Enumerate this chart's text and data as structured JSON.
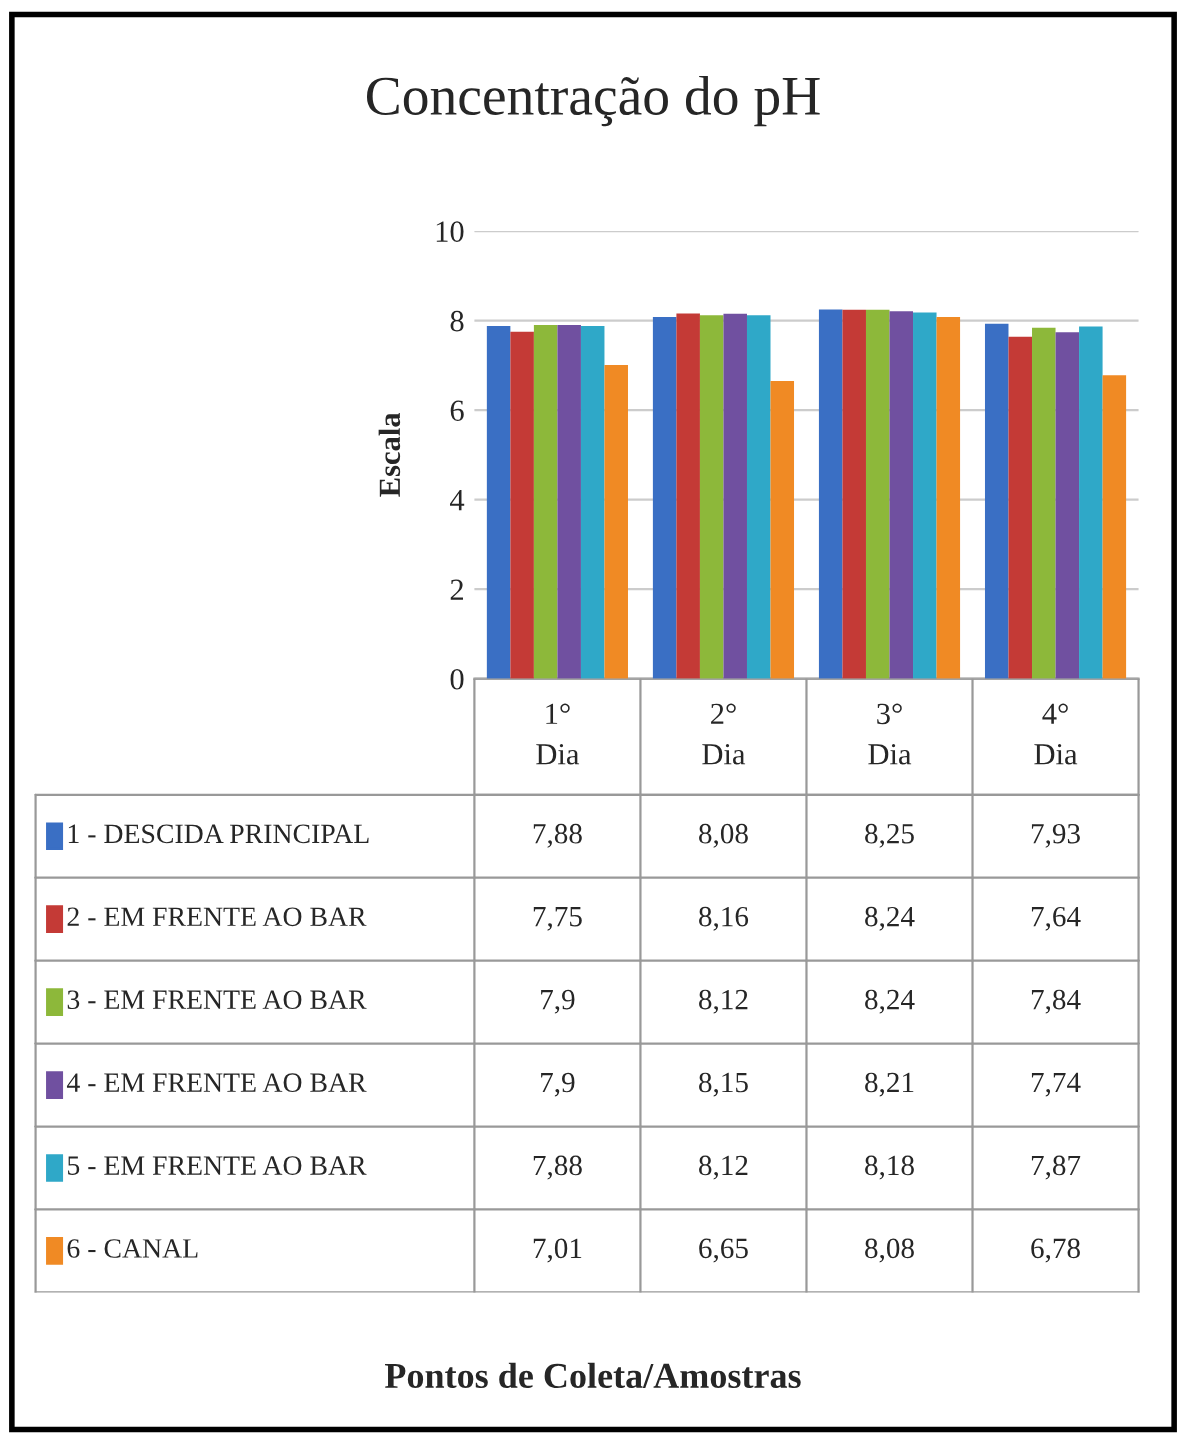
{
  "chart_data": {
    "type": "bar",
    "title": "Concentração do pH",
    "ylabel": "Escala",
    "annotations": [
      "Pontos de Coleta/Amostras"
    ],
    "categories": [
      "1°\nDia",
      "2°\nDia",
      "3°\nDia",
      "4°\nDia"
    ],
    "series": [
      {
        "name": "1 - DESCIDA PRINCIPAL",
        "color": "#3a6fc4",
        "values": [
          7.88,
          8.08,
          8.25,
          7.93
        ],
        "value_labels": [
          "7,88",
          "8,08",
          "8,25",
          "7,93"
        ]
      },
      {
        "name": "2 - EM FRENTE AO BAR",
        "color": "#c43a36",
        "values": [
          7.75,
          8.16,
          8.24,
          7.64
        ],
        "value_labels": [
          "7,75",
          "8,16",
          "8,24",
          "7,64"
        ]
      },
      {
        "name": "3 - EM FRENTE AO BAR",
        "color": "#8db83a",
        "values": [
          7.9,
          8.12,
          8.24,
          7.84
        ],
        "value_labels": [
          "7,9",
          "8,12",
          "8,24",
          "7,84"
        ]
      },
      {
        "name": "4 - EM FRENTE AO BAR",
        "color": "#7050a0",
        "values": [
          7.9,
          8.15,
          8.21,
          7.74
        ],
        "value_labels": [
          "7,9",
          "8,15",
          "8,21",
          "7,74"
        ]
      },
      {
        "name": "5 - EM FRENTE AO BAR",
        "color": "#2fa8c8",
        "values": [
          7.88,
          8.12,
          8.18,
          7.87
        ],
        "value_labels": [
          "7,88",
          "8,12",
          "8,18",
          "7,87"
        ]
      },
      {
        "name": "6 - CANAL",
        "color": "#f08a24",
        "values": [
          7.01,
          6.65,
          8.08,
          6.78
        ],
        "value_labels": [
          "7,01",
          "6,65",
          "8,08",
          "6,78"
        ]
      }
    ],
    "ylim": [
      0,
      10
    ],
    "yticks": [
      0,
      2,
      4,
      6,
      8,
      10
    ],
    "grid": "y",
    "tick_labels": "y",
    "legend": "bottom"
  }
}
